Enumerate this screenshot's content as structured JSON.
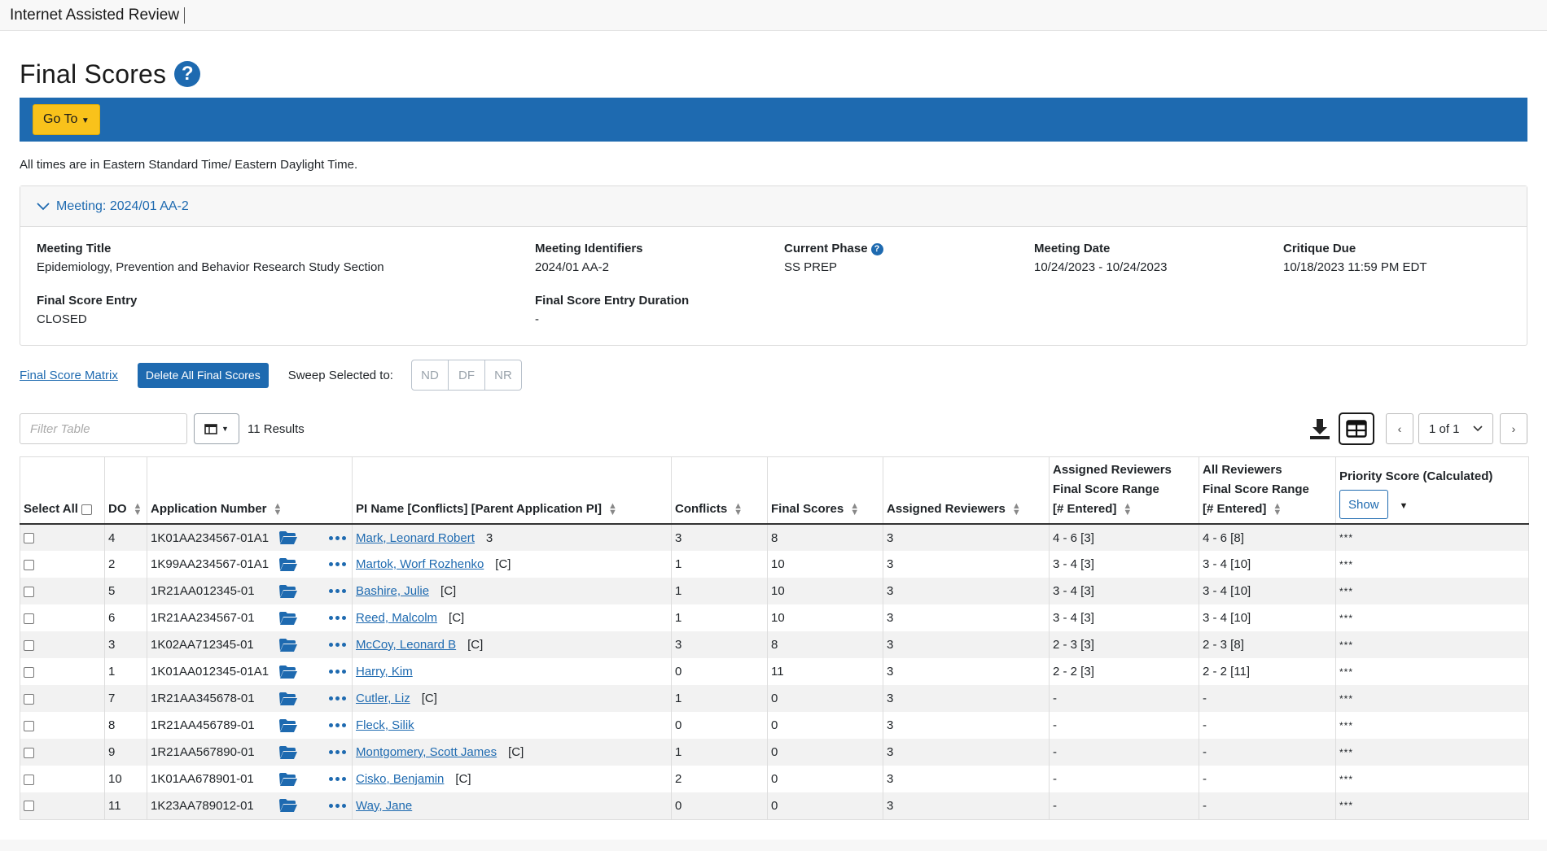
{
  "app_title": "Internet Assisted Review",
  "page_title": "Final Scores",
  "goto_label": "Go To",
  "timezone_note": "All times are in Eastern Standard Time/ Eastern Daylight Time.",
  "meeting": {
    "header_label": "Meeting:",
    "header_value": "2024/01 AA-2",
    "title_label": "Meeting Title",
    "title_value": "Epidemiology, Prevention and Behavior Research Study Section",
    "identifiers_label": "Meeting Identifiers",
    "identifiers_value": "2024/01 AA-2",
    "phase_label": "Current Phase",
    "phase_value": "SS PREP",
    "date_label": "Meeting Date",
    "date_value": "10/24/2023 - 10/24/2023",
    "critique_label": "Critique Due",
    "critique_value": "10/18/2023 11:59 PM EDT",
    "entry_label": "Final Score Entry",
    "entry_value": "CLOSED",
    "duration_label": "Final Score Entry Duration",
    "duration_value": "-"
  },
  "actions": {
    "matrix_link": "Final Score Matrix",
    "delete_all": "Delete All Final Scores",
    "sweep_label": "Sweep Selected to:",
    "sweep_options": [
      "ND",
      "DF",
      "NR"
    ]
  },
  "toolbar": {
    "filter_placeholder": "Filter Table",
    "results": "11 Results",
    "page_indicator": "1 of 1"
  },
  "table": {
    "headers": {
      "select_all": "Select All",
      "do": "DO",
      "application_number": "Application Number",
      "pi_name": "PI Name [Conflicts] [Parent Application PI]",
      "conflicts": "Conflicts",
      "final_scores": "Final Scores",
      "assigned_reviewers": "Assigned Reviewers",
      "assigned_range_l1": "Assigned Reviewers",
      "assigned_range_l2": "Final Score Range",
      "assigned_range_l3": "[# Entered]",
      "all_range_l1": "All Reviewers",
      "all_range_l2": "Final Score Range",
      "all_range_l3": "[# Entered]",
      "priority": "Priority Score (Calculated)",
      "show_label": "Show"
    },
    "rows": [
      {
        "do": "4",
        "app": "1K01AA234567-01A1",
        "pi": "Mark, Leonard Robert",
        "tag": "3",
        "conflicts": "3",
        "final": "8",
        "assigned": "3",
        "assigned_range": "4 - 6 [3]",
        "all_range": "4 - 6 [8]",
        "priority": "***"
      },
      {
        "do": "2",
        "app": "1K99AA234567-01A1",
        "pi": "Martok, Worf Rozhenko",
        "tag": "[C]",
        "conflicts": "1",
        "final": "10",
        "assigned": "3",
        "assigned_range": "3 - 4 [3]",
        "all_range": "3 - 4 [10]",
        "priority": "***"
      },
      {
        "do": "5",
        "app": "1R21AA012345-01",
        "pi": "Bashire, Julie",
        "tag": "[C]",
        "conflicts": "1",
        "final": "10",
        "assigned": "3",
        "assigned_range": "3 - 4 [3]",
        "all_range": "3 - 4 [10]",
        "priority": "***"
      },
      {
        "do": "6",
        "app": "1R21AA234567-01",
        "pi": "Reed, Malcolm",
        "tag": "[C]",
        "conflicts": "1",
        "final": "10",
        "assigned": "3",
        "assigned_range": "3 - 4 [3]",
        "all_range": "3 - 4 [10]",
        "priority": "***"
      },
      {
        "do": "3",
        "app": "1K02AA712345-01",
        "pi": "McCoy, Leonard B",
        "tag": "[C]",
        "conflicts": "3",
        "final": "8",
        "assigned": "3",
        "assigned_range": "2 - 3 [3]",
        "all_range": "2 - 3 [8]",
        "priority": "***"
      },
      {
        "do": "1",
        "app": "1K01AA012345-01A1",
        "pi": "Harry, Kim",
        "tag": "",
        "conflicts": "0",
        "final": "11",
        "assigned": "3",
        "assigned_range": "2 - 2 [3]",
        "all_range": "2 - 2 [11]",
        "priority": "***"
      },
      {
        "do": "7",
        "app": "1R21AA345678-01",
        "pi": "Cutler, Liz",
        "tag": "[C]",
        "conflicts": "1",
        "final": "0",
        "assigned": "3",
        "assigned_range": "-",
        "all_range": "-",
        "priority": "***"
      },
      {
        "do": "8",
        "app": "1R21AA456789-01",
        "pi": "Fleck, Silik",
        "tag": "",
        "conflicts": "0",
        "final": "0",
        "assigned": "3",
        "assigned_range": "-",
        "all_range": "-",
        "priority": "***"
      },
      {
        "do": "9",
        "app": "1R21AA567890-01",
        "pi": "Montgomery, Scott James",
        "tag": "[C]",
        "conflicts": "1",
        "final": "0",
        "assigned": "3",
        "assigned_range": "-",
        "all_range": "-",
        "priority": "***"
      },
      {
        "do": "10",
        "app": "1K01AA678901-01",
        "pi": "Cisko, Benjamin",
        "tag": "[C]",
        "conflicts": "2",
        "final": "0",
        "assigned": "3",
        "assigned_range": "-",
        "all_range": "-",
        "priority": "***"
      },
      {
        "do": "11",
        "app": "1K23AA789012-01",
        "pi": "Way, Jane",
        "tag": "",
        "conflicts": "0",
        "final": "0",
        "assigned": "3",
        "assigned_range": "-",
        "all_range": "-",
        "priority": "***"
      }
    ]
  },
  "colors": {
    "primary": "#1e6ab0",
    "goto_button": "#f9c21b",
    "stripe": "#f2f2f2"
  },
  "icons": [
    "help-icon",
    "chevron-down-icon",
    "columns-icon",
    "caret-down-icon",
    "download-icon",
    "table-view-icon",
    "chevron-left-icon",
    "chevron-right-icon",
    "folder-icon",
    "more-options-icon"
  ]
}
